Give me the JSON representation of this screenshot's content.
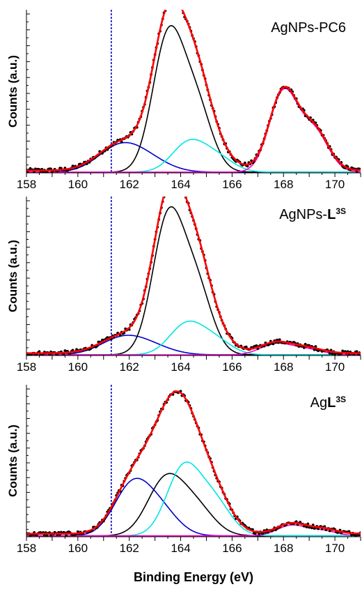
{
  "figure": {
    "xlabel": "Binding Energy (eV)"
  },
  "chart_data": [
    {
      "type": "line",
      "title_parts": [
        {
          "text": "AgNPs-PC6",
          "bold": false
        }
      ],
      "ylabel": "Counts (a.u.)",
      "xlabel": "",
      "xlim": [
        158,
        171
      ],
      "ylim": [
        0,
        100
      ],
      "xticks": [
        158,
        160,
        162,
        164,
        166,
        168,
        170
      ],
      "reference_line_x": 161.3,
      "components": [
        {
          "color": "#0000cc",
          "peaks": [
            {
              "center": 161.6,
              "height": 15,
              "sigma": 0.85
            },
            {
              "center": 162.7,
              "height": 7,
              "sigma": 0.85
            }
          ]
        },
        {
          "color": "#000000",
          "peaks": [
            {
              "center": 163.5,
              "height": 83,
              "sigma": 0.6
            },
            {
              "center": 164.6,
              "height": 41,
              "sigma": 0.6
            }
          ]
        },
        {
          "color": "#00e5e5",
          "peaks": [
            {
              "center": 164.3,
              "height": 18,
              "sigma": 0.65
            },
            {
              "center": 165.4,
              "height": 9,
              "sigma": 0.65
            }
          ]
        },
        {
          "color": "#ff00cc",
          "peaks": [
            {
              "center": 168.0,
              "height": 50,
              "sigma": 0.55
            },
            {
              "center": 169.2,
              "height": 25,
              "sigma": 0.55
            }
          ]
        }
      ],
      "envelope_color": "#ff0000",
      "points_color": "#000000",
      "baseline": 1.5
    },
    {
      "type": "line",
      "title_parts": [
        {
          "text": "AgNPs-",
          "bold": false
        },
        {
          "text": "L",
          "bold": true
        },
        {
          "text": "3S",
          "bold": true,
          "superscript": true
        }
      ],
      "ylabel": "Counts (a.u.)",
      "xlabel": "",
      "xlim": [
        158,
        171
      ],
      "ylim": [
        0,
        100
      ],
      "xticks": [
        158,
        160,
        162,
        164,
        166,
        168,
        170
      ],
      "reference_line_x": 161.3,
      "components": [
        {
          "color": "#0000cc",
          "peaks": [
            {
              "center": 161.7,
              "height": 10,
              "sigma": 0.85
            },
            {
              "center": 162.8,
              "height": 5,
              "sigma": 0.85
            }
          ]
        },
        {
          "color": "#000000",
          "peaks": [
            {
              "center": 163.5,
              "height": 86,
              "sigma": 0.6
            },
            {
              "center": 164.6,
              "height": 43,
              "sigma": 0.6
            }
          ]
        },
        {
          "color": "#00e5e5",
          "peaks": [
            {
              "center": 164.2,
              "height": 19,
              "sigma": 0.65
            },
            {
              "center": 165.3,
              "height": 9.5,
              "sigma": 0.65
            }
          ]
        },
        {
          "color": "#ff00cc",
          "peaks": [
            {
              "center": 167.7,
              "height": 7,
              "sigma": 0.6
            },
            {
              "center": 168.9,
              "height": 3.5,
              "sigma": 0.6
            }
          ]
        }
      ],
      "envelope_color": "#ff0000",
      "points_color": "#000000",
      "baseline": 1.5
    },
    {
      "type": "line",
      "title_parts": [
        {
          "text": "Ag",
          "bold": false
        },
        {
          "text": "L",
          "bold": true
        },
        {
          "text": "3S",
          "bold": true,
          "superscript": true
        }
      ],
      "ylabel": "Counts (a.u.)",
      "xlabel": "Binding Energy (eV)",
      "xlim": [
        158,
        171
      ],
      "ylim": [
        0,
        100
      ],
      "xticks": [
        158,
        160,
        162,
        164,
        166,
        168,
        170
      ],
      "reference_line_x": 161.3,
      "components": [
        {
          "color": "#0000cc",
          "peaks": [
            {
              "center": 162.1,
              "height": 33,
              "sigma": 0.7
            },
            {
              "center": 163.2,
              "height": 16.5,
              "sigma": 0.7
            }
          ]
        },
        {
          "color": "#000000",
          "peaks": [
            {
              "center": 163.4,
              "height": 37,
              "sigma": 0.7
            },
            {
              "center": 164.6,
              "height": 18.5,
              "sigma": 0.7
            }
          ]
        },
        {
          "color": "#00e5e5",
          "peaks": [
            {
              "center": 164.1,
              "height": 45,
              "sigma": 0.65
            },
            {
              "center": 165.3,
              "height": 22.5,
              "sigma": 0.65
            }
          ]
        },
        {
          "color": "#ff00cc",
          "peaks": [
            {
              "center": 168.3,
              "height": 7,
              "sigma": 0.55
            },
            {
              "center": 169.5,
              "height": 3.5,
              "sigma": 0.55
            }
          ]
        }
      ],
      "envelope_color": "#ff0000",
      "points_color": "#000000",
      "baseline": 2
    }
  ]
}
